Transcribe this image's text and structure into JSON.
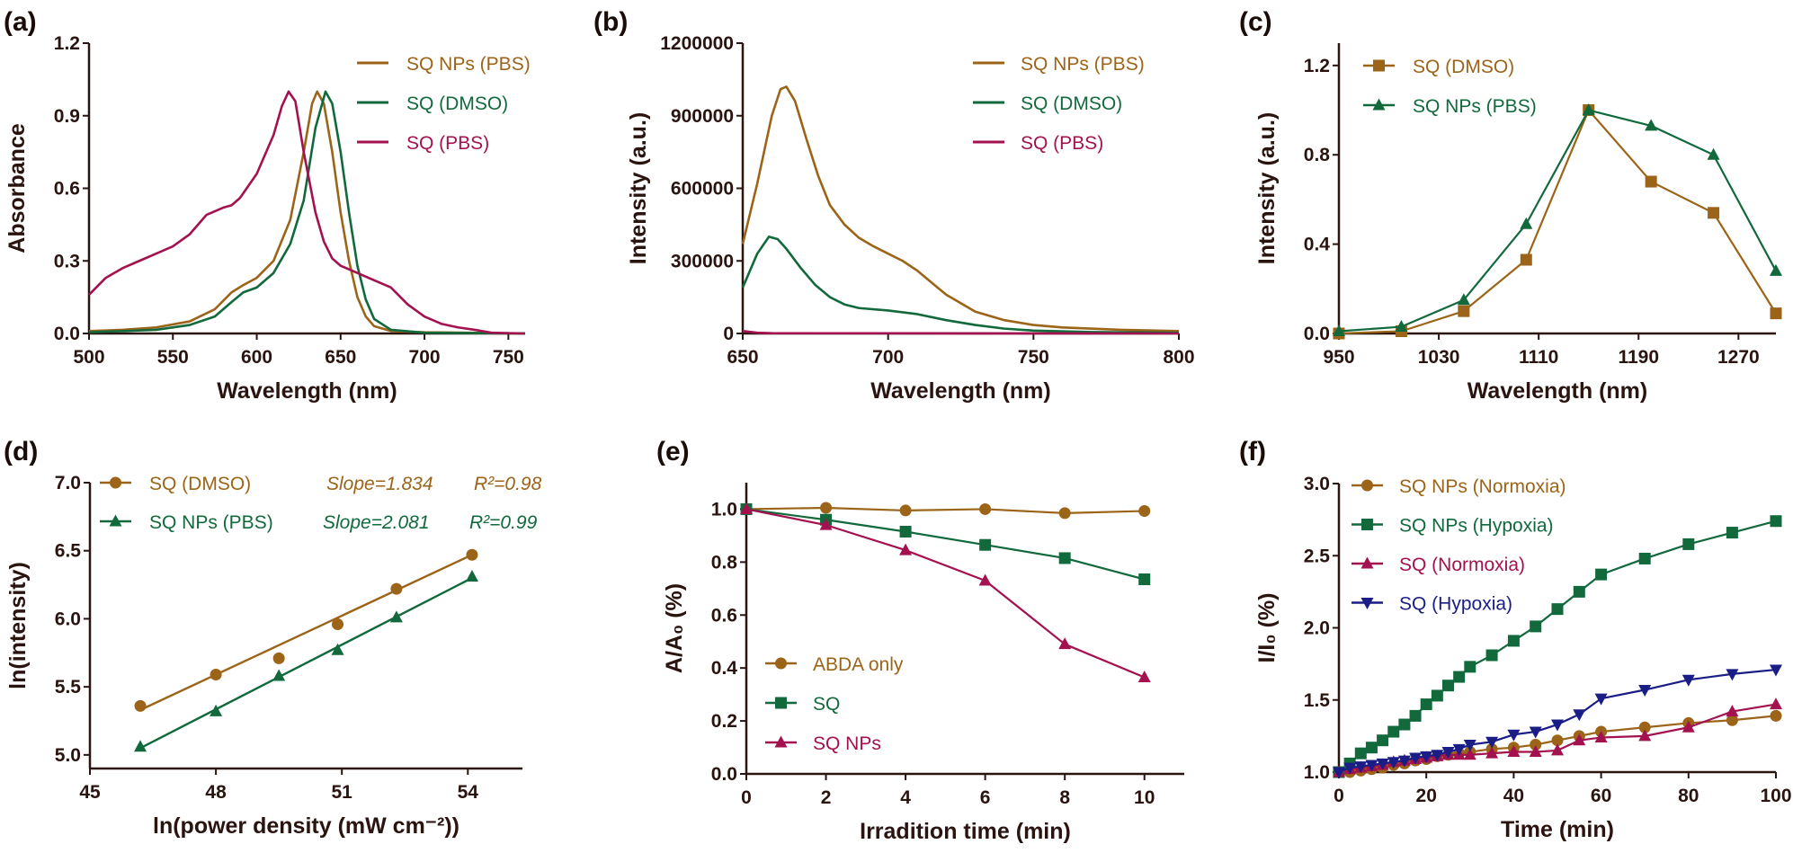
{
  "colors": {
    "brown": "#9b6418",
    "green": "#11693c",
    "crimson": "#a3124f",
    "navy": "#1b1d86",
    "axis": "#2a1410"
  },
  "chart_data": [
    {
      "panel_label": "(a)",
      "type": "line",
      "xlabel": "Wavelength (nm)",
      "ylabel": "Absorbance",
      "xlim": [
        500,
        760
      ],
      "ylim": [
        0,
        1.2
      ],
      "xticks": [
        500,
        550,
        600,
        650,
        700,
        750
      ],
      "xtick_labels": [
        "500",
        "550",
        "600",
        "650",
        "700",
        "750"
      ],
      "yticks": [
        0,
        0.3,
        0.6,
        0.9,
        1.2
      ],
      "ytick_labels": [
        "0.0",
        "0.3",
        "0.6",
        "0.9",
        "1.2"
      ],
      "legend": "top-right",
      "series": [
        {
          "name": "SQ NPs (PBS)",
          "color": "brown",
          "marker": "none",
          "x": [
            500,
            520,
            540,
            560,
            575,
            585,
            592,
            600,
            610,
            620,
            628,
            633,
            636,
            640,
            645,
            650,
            655,
            660,
            665,
            670,
            680,
            700,
            760
          ],
          "y": [
            0.01,
            0.015,
            0.025,
            0.05,
            0.1,
            0.17,
            0.2,
            0.23,
            0.3,
            0.47,
            0.75,
            0.95,
            1.0,
            0.95,
            0.75,
            0.5,
            0.3,
            0.15,
            0.07,
            0.03,
            0.01,
            0.005,
            0
          ]
        },
        {
          "name": "SQ (DMSO)",
          "color": "green",
          "marker": "none",
          "x": [
            500,
            540,
            560,
            575,
            585,
            592,
            600,
            610,
            620,
            628,
            635,
            641,
            645,
            650,
            655,
            660,
            665,
            670,
            680,
            700,
            760
          ],
          "y": [
            0.005,
            0.015,
            0.035,
            0.07,
            0.13,
            0.17,
            0.19,
            0.25,
            0.37,
            0.55,
            0.85,
            1.0,
            0.95,
            0.75,
            0.5,
            0.28,
            0.14,
            0.06,
            0.015,
            0.003,
            0
          ]
        },
        {
          "name": "SQ (PBS)",
          "color": "crimson",
          "marker": "none",
          "x": [
            500,
            510,
            520,
            530,
            540,
            550,
            560,
            570,
            580,
            585,
            590,
            600,
            610,
            615,
            619,
            623,
            628,
            635,
            640,
            645,
            650,
            660,
            670,
            680,
            690,
            700,
            710,
            720,
            730,
            740,
            760
          ],
          "y": [
            0.16,
            0.23,
            0.27,
            0.3,
            0.33,
            0.36,
            0.41,
            0.49,
            0.52,
            0.53,
            0.56,
            0.66,
            0.82,
            0.94,
            1.0,
            0.96,
            0.75,
            0.5,
            0.38,
            0.31,
            0.28,
            0.25,
            0.22,
            0.19,
            0.12,
            0.07,
            0.04,
            0.025,
            0.015,
            0.003,
            0
          ]
        }
      ]
    },
    {
      "panel_label": "(b)",
      "type": "line",
      "xlabel": "Wavelength (nm)",
      "ylabel": "Intensity (a.u.)",
      "xlim": [
        650,
        800
      ],
      "ylim": [
        0,
        1200000
      ],
      "xticks": [
        650,
        700,
        750,
        800
      ],
      "xtick_labels": [
        "650",
        "700",
        "750",
        "800"
      ],
      "yticks": [
        0,
        300000,
        600000,
        900000,
        1200000
      ],
      "ytick_labels": [
        "0",
        "300000",
        "600000",
        "900000",
        "1200000"
      ],
      "legend": "top-right",
      "series": [
        {
          "name": "SQ NPs (PBS)",
          "color": "brown",
          "marker": "none",
          "x": [
            650,
            655,
            660,
            663,
            665,
            668,
            672,
            676,
            680,
            685,
            690,
            695,
            700,
            705,
            710,
            715,
            720,
            730,
            740,
            750,
            760,
            780,
            800
          ],
          "y": [
            370000,
            620000,
            900000,
            1010000,
            1020000,
            960000,
            800000,
            650000,
            530000,
            450000,
            395000,
            360000,
            330000,
            300000,
            260000,
            210000,
            160000,
            90000,
            55000,
            35000,
            25000,
            15000,
            10000
          ]
        },
        {
          "name": "SQ (DMSO)",
          "color": "green",
          "marker": "none",
          "x": [
            650,
            655,
            659,
            662,
            665,
            670,
            675,
            680,
            685,
            690,
            700,
            710,
            720,
            730,
            740,
            750,
            770,
            800
          ],
          "y": [
            190000,
            330000,
            400000,
            390000,
            350000,
            270000,
            200000,
            150000,
            120000,
            105000,
            95000,
            80000,
            55000,
            35000,
            20000,
            12000,
            6000,
            3000
          ]
        },
        {
          "name": "SQ (PBS)",
          "color": "crimson",
          "marker": "none",
          "x": [
            650,
            655,
            660,
            800
          ],
          "y": [
            10000,
            3000,
            1000,
            0
          ]
        }
      ]
    },
    {
      "panel_label": "(c)",
      "type": "line",
      "xlabel": "Wavelength (nm)",
      "ylabel": "Intensity (a.u.)",
      "xlim": [
        950,
        1300
      ],
      "ylim": [
        0,
        1.3
      ],
      "xticks": [
        950,
        1030,
        1110,
        1190,
        1270
      ],
      "xtick_labels": [
        "950",
        "1030",
        "1110",
        "1190",
        "1270"
      ],
      "yticks": [
        0,
        0.4,
        0.8,
        1.2
      ],
      "ytick_labels": [
        "0.0",
        "0.4",
        "0.8",
        "1.2"
      ],
      "legend": "top-left",
      "series": [
        {
          "name": "SQ (DMSO)",
          "color": "brown",
          "marker": "square",
          "x": [
            950,
            1000,
            1050,
            1100,
            1150,
            1200,
            1250,
            1300
          ],
          "y": [
            0,
            0.01,
            0.1,
            0.33,
            1.0,
            0.68,
            0.54,
            0.09
          ]
        },
        {
          "name": "SQ NPs (PBS)",
          "color": "green",
          "marker": "triangle",
          "x": [
            950,
            1000,
            1050,
            1100,
            1150,
            1200,
            1250,
            1300
          ],
          "y": [
            0.01,
            0.03,
            0.15,
            0.49,
            1.0,
            0.93,
            0.8,
            0.28
          ]
        }
      ]
    },
    {
      "panel_label": "(d)",
      "type": "scatter",
      "xlabel": "ln(power density (mW cm⁻²))",
      "ylabel": "ln(intensity)",
      "xlim": [
        45,
        55.3
      ],
      "ylim": [
        4.9,
        7.0
      ],
      "xticks": [
        45,
        48,
        51,
        54
      ],
      "xtick_labels": [
        "45",
        "48",
        "51",
        "54"
      ],
      "yticks": [
        5.0,
        5.5,
        6.0,
        6.5,
        7.0
      ],
      "ytick_labels": [
        "5.0",
        "5.5",
        "6.0",
        "6.5",
        "7.0"
      ],
      "legend": "top-left",
      "series": [
        {
          "name": "SQ (DMSO)",
          "color": "brown",
          "marker": "circle",
          "connect": false,
          "x": [
            46.2,
            48.0,
            49.5,
            50.9,
            52.3,
            54.1
          ],
          "y": [
            5.36,
            5.59,
            5.71,
            5.96,
            6.22,
            6.47
          ],
          "fit": {
            "x": [
              46.2,
              54.1
            ],
            "y": [
              5.33,
              6.47
            ]
          },
          "annotation": {
            "slope": "Slope=1.834",
            "r2": "R²=0.98"
          }
        },
        {
          "name": "SQ NPs (PBS)",
          "color": "green",
          "marker": "triangle",
          "connect": false,
          "x": [
            46.2,
            48.0,
            49.5,
            50.9,
            52.3,
            54.1
          ],
          "y": [
            5.06,
            5.32,
            5.58,
            5.77,
            6.01,
            6.31
          ],
          "fit": {
            "x": [
              46.2,
              54.1
            ],
            "y": [
              5.05,
              6.3
            ]
          },
          "annotation": {
            "slope": "Slope=2.081",
            "r2": "R²=0.99"
          }
        }
      ]
    },
    {
      "panel_label": "(e)",
      "type": "line",
      "xlabel": "Irradition time (min)",
      "ylabel": "A/A₀ (%)",
      "xlim": [
        0,
        11
      ],
      "ylim": [
        0,
        1.1
      ],
      "xticks": [
        0,
        2,
        4,
        6,
        8,
        10
      ],
      "xtick_labels": [
        "0",
        "2",
        "4",
        "6",
        "8",
        "10"
      ],
      "yticks": [
        0,
        0.2,
        0.4,
        0.6,
        0.8,
        1.0
      ],
      "ytick_labels": [
        "0.0",
        "0.2",
        "0.4",
        "0.6",
        "0.8",
        "1.0"
      ],
      "legend": "bottom-left",
      "series": [
        {
          "name": "ABDA only",
          "color": "brown",
          "marker": "circle",
          "x": [
            0,
            2,
            4,
            6,
            8,
            10
          ],
          "y": [
            1.0,
            1.005,
            0.995,
            1.0,
            0.985,
            0.993
          ]
        },
        {
          "name": "SQ",
          "color": "green",
          "marker": "square",
          "x": [
            0,
            2,
            4,
            6,
            8,
            10
          ],
          "y": [
            1.0,
            0.96,
            0.915,
            0.865,
            0.815,
            0.735
          ]
        },
        {
          "name": "SQ NPs",
          "color": "crimson",
          "marker": "triangle",
          "x": [
            0,
            2,
            4,
            6,
            8,
            10
          ],
          "y": [
            1.0,
            0.94,
            0.845,
            0.73,
            0.49,
            0.365
          ]
        }
      ]
    },
    {
      "panel_label": "(f)",
      "type": "line",
      "xlabel": "Time (min)",
      "ylabel": "I/I₀ (%)",
      "xlim": [
        0,
        100
      ],
      "ylim": [
        1.0,
        3.0
      ],
      "xticks": [
        0,
        20,
        40,
        60,
        80,
        100
      ],
      "xtick_labels": [
        "0",
        "20",
        "40",
        "60",
        "80",
        "100"
      ],
      "yticks": [
        1.0,
        1.5,
        2.0,
        2.5,
        3.0
      ],
      "ytick_labels": [
        "1.0",
        "1.5",
        "2.0",
        "2.5",
        "3.0"
      ],
      "legend": "top-left",
      "series": [
        {
          "name": "SQ NPs (Normoxia)",
          "color": "brown",
          "marker": "circle",
          "x": [
            0,
            2.5,
            5,
            7.5,
            10,
            12.5,
            15,
            17.5,
            20,
            22.5,
            25,
            27.5,
            30,
            35,
            40,
            45,
            50,
            55,
            60,
            70,
            80,
            90,
            100
          ],
          "y": [
            1.0,
            1.0,
            1.01,
            1.02,
            1.03,
            1.05,
            1.06,
            1.08,
            1.09,
            1.11,
            1.12,
            1.13,
            1.14,
            1.16,
            1.17,
            1.19,
            1.22,
            1.25,
            1.28,
            1.31,
            1.34,
            1.36,
            1.39
          ]
        },
        {
          "name": "SQ NPs (Hypoxia)",
          "color": "green",
          "marker": "square",
          "x": [
            0,
            2.5,
            5,
            7.5,
            10,
            12.5,
            15,
            17.5,
            20,
            22.5,
            25,
            27.5,
            30,
            35,
            40,
            45,
            50,
            55,
            60,
            70,
            80,
            90,
            100
          ],
          "y": [
            1.0,
            1.06,
            1.13,
            1.17,
            1.22,
            1.28,
            1.33,
            1.39,
            1.47,
            1.53,
            1.6,
            1.66,
            1.73,
            1.81,
            1.91,
            2.01,
            2.13,
            2.25,
            2.37,
            2.48,
            2.58,
            2.66,
            2.74
          ]
        },
        {
          "name": "SQ (Normoxia)",
          "color": "crimson",
          "marker": "triangle",
          "x": [
            0,
            2.5,
            5,
            7.5,
            10,
            12.5,
            15,
            17.5,
            20,
            22.5,
            25,
            27.5,
            30,
            35,
            40,
            45,
            50,
            55,
            60,
            70,
            80,
            90,
            100
          ],
          "y": [
            1.0,
            1.02,
            1.03,
            1.04,
            1.05,
            1.07,
            1.08,
            1.09,
            1.1,
            1.11,
            1.12,
            1.12,
            1.12,
            1.13,
            1.14,
            1.14,
            1.15,
            1.22,
            1.24,
            1.25,
            1.31,
            1.42,
            1.47
          ]
        },
        {
          "name": "SQ (Hypoxia)",
          "color": "navy",
          "marker": "triangle-down",
          "x": [
            0,
            2.5,
            5,
            7.5,
            10,
            12.5,
            15,
            17.5,
            20,
            22.5,
            25,
            27.5,
            30,
            35,
            40,
            45,
            50,
            55,
            60,
            70,
            80,
            90,
            100
          ],
          "y": [
            1.0,
            1.03,
            1.04,
            1.05,
            1.06,
            1.07,
            1.08,
            1.1,
            1.11,
            1.12,
            1.14,
            1.16,
            1.19,
            1.21,
            1.26,
            1.28,
            1.33,
            1.4,
            1.51,
            1.57,
            1.64,
            1.68,
            1.71
          ]
        }
      ]
    }
  ]
}
